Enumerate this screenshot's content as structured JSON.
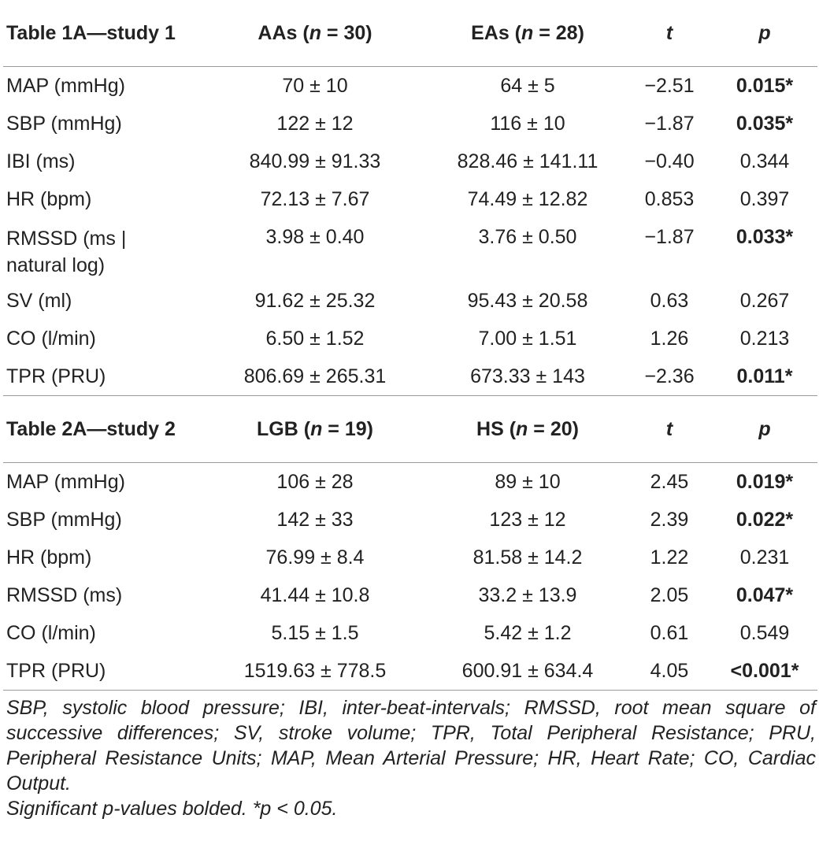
{
  "table1": {
    "header": {
      "label": "Table 1A—study 1",
      "g1_name": "AAs (",
      "g1_n": "n",
      "g1_val": " = 30)",
      "g2_name": "EAs (",
      "g2_n": "n",
      "g2_val": " = 28)",
      "t": "t",
      "p": "p"
    },
    "rows": [
      {
        "label": "MAP (mmHg)",
        "g1": "70 ± 10",
        "g2": "64 ± 5",
        "t": "−2.51",
        "p": "0.015*"
      },
      {
        "label": "SBP (mmHg)",
        "g1": "122 ± 12",
        "g2": "116 ± 10",
        "t": "−1.87",
        "p": "0.035*"
      },
      {
        "label": "IBI (ms)",
        "g1": "840.99 ± 91.33",
        "g2": "828.46 ± 141.11",
        "t": "−0.40",
        "p": "0.344"
      },
      {
        "label": "HR (bpm)",
        "g1": "72.13 ± 7.67",
        "g2": "74.49 ± 12.82",
        "t": "0.853",
        "p": "0.397"
      },
      {
        "label_line1": "RMSSD (ms |",
        "label_line2": "natural log)",
        "g1": "3.98 ± 0.40",
        "g2": "3.76 ± 0.50",
        "t": "−1.87",
        "p": "0.033*"
      },
      {
        "label": "SV (ml)",
        "g1": "91.62 ± 25.32",
        "g2": "95.43 ± 20.58",
        "t": "0.63",
        "p": "0.267"
      },
      {
        "label": "CO (l/min)",
        "g1": "6.50 ± 1.52",
        "g2": "7.00 ± 1.51",
        "t": "1.26",
        "p": "0.213"
      },
      {
        "label": "TPR (PRU)",
        "g1": "806.69 ± 265.31",
        "g2": "673.33 ± 143",
        "t": "−2.36",
        "p": "0.011*"
      }
    ]
  },
  "table2": {
    "header": {
      "label": "Table 2A—study 2",
      "g1_name": "LGB (",
      "g1_n": "n",
      "g1_val": " = 19)",
      "g2_name": "HS (",
      "g2_n": "n",
      "g2_val": " = 20)",
      "t": "t",
      "p": "p"
    },
    "rows": [
      {
        "label": "MAP (mmHg)",
        "g1": "106 ± 28",
        "g2": "89 ± 10",
        "t": "2.45",
        "p": "0.019*"
      },
      {
        "label": "SBP (mmHg)",
        "g1": "142 ± 33",
        "g2": "123 ± 12",
        "t": "2.39",
        "p": "0.022*"
      },
      {
        "label": "HR (bpm)",
        "g1": "76.99 ± 8.4",
        "g2": "81.58 ± 14.2",
        "t": "1.22",
        "p": "0.231"
      },
      {
        "label": "RMSSD (ms)",
        "g1": "41.44 ± 10.8",
        "g2": "33.2 ± 13.9",
        "t": "2.05",
        "p": "0.047*"
      },
      {
        "label": "CO (l/min)",
        "g1": "5.15 ± 1.5",
        "g2": "5.42 ± 1.2",
        "t": "0.61",
        "p": "0.549"
      },
      {
        "label": "TPR (PRU)",
        "g1": "1519.63 ± 778.5",
        "g2": "600.91 ± 634.4",
        "t": "4.05",
        "p": "<0.001*"
      }
    ]
  },
  "footnotes": {
    "abbreviations": "SBP, systolic blood pressure; IBI, inter-beat-intervals; RMSSD, root mean square of successive differences; SV, stroke volume; TPR, Total Peripheral Resistance; PRU, Peripheral Resistance Units; MAP, Mean Arterial Pressure; HR, Heart Rate; CO, Cardiac Output.",
    "significance": "Significant p-values bolded. *p < 0.05."
  }
}
